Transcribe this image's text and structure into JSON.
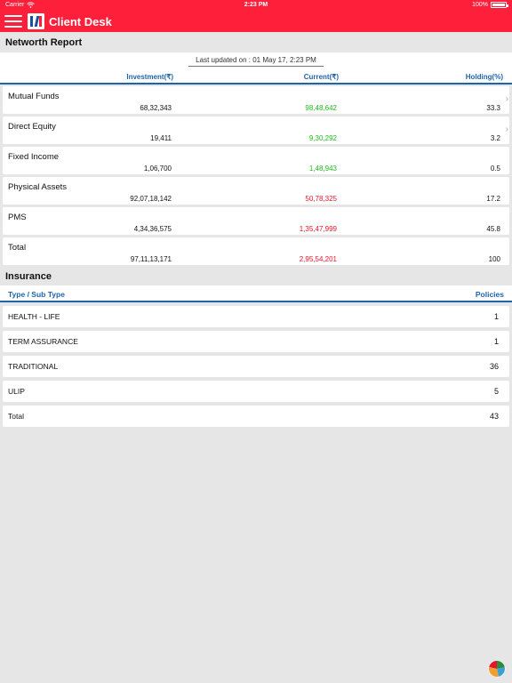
{
  "status_bar": {
    "carrier": "Carrier",
    "time": "2:23 PM",
    "battery": "100%",
    "battery_level": 1.0
  },
  "app": {
    "title": "Client Desk",
    "accent_color": "#fe1f3a",
    "header_blue": "#1e64aa"
  },
  "networth": {
    "section_title": "Networth Report",
    "last_updated": "Last updated on : 01 May 17, 2:23 PM",
    "columns": {
      "investment": "Investment(₹)",
      "current": "Current(₹)",
      "holding": "Holding(%)"
    },
    "rows": [
      {
        "name": "Mutual Funds",
        "investment": "68,32,343",
        "current": "98,48,642",
        "current_status": "gain",
        "holding": "33.3",
        "has_details": true
      },
      {
        "name": "Direct Equity",
        "investment": "19,411",
        "current": "9,30,292",
        "current_status": "gain",
        "holding": "3.2",
        "has_details": true
      },
      {
        "name": "Fixed Income",
        "investment": "1,06,700",
        "current": "1,48,943",
        "current_status": "gain",
        "holding": "0.5",
        "has_details": false
      },
      {
        "name": "Physical Assets",
        "investment": "92,07,18,142",
        "current": "50,78,325",
        "current_status": "loss",
        "holding": "17.2",
        "has_details": false
      },
      {
        "name": "PMS",
        "investment": "4,34,36,575",
        "current": "1,35,47,999",
        "current_status": "loss",
        "holding": "45.8",
        "has_details": false
      },
      {
        "name": "Total",
        "investment": "97,11,13,171",
        "current": "2,95,54,201",
        "current_status": "loss",
        "holding": "100",
        "has_details": false
      }
    ],
    "gain_color": "#1fb81f",
    "loss_color": "#e8152a"
  },
  "insurance": {
    "section_title": "Insurance",
    "columns": {
      "type": "Type / Sub Type",
      "policies": "Policies"
    },
    "rows": [
      {
        "type": "HEALTH - LIFE",
        "policies": "1"
      },
      {
        "type": "TERM ASSURANCE",
        "policies": "1"
      },
      {
        "type": "TRADITIONAL",
        "policies": "36"
      },
      {
        "type": "ULIP",
        "policies": "5"
      },
      {
        "type": "Total",
        "policies": "43"
      }
    ]
  },
  "fab": {
    "icon": "pie-chart-icon"
  }
}
